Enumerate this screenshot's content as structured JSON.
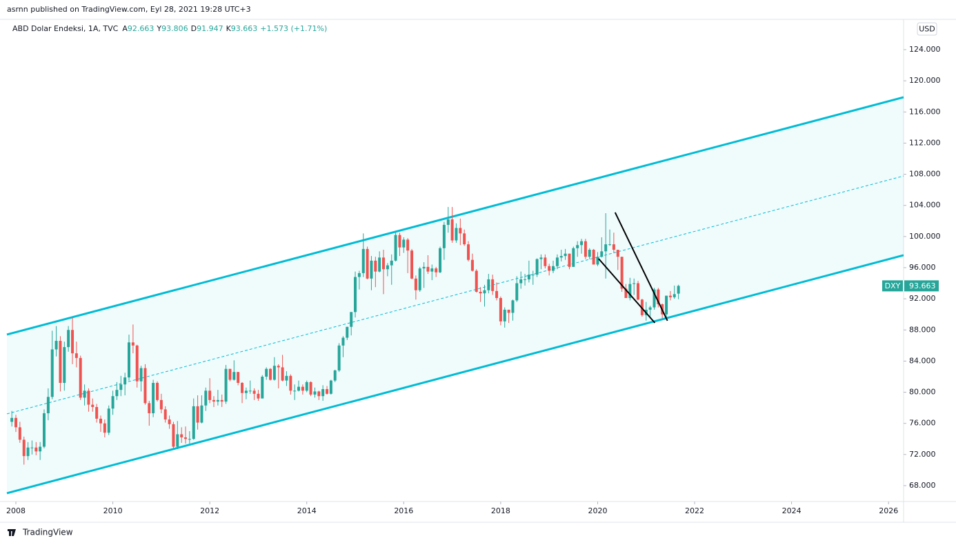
{
  "header": {
    "published": "asrnn published on TradingView.com, Eyl 28, 2021 19:28 UTC+3",
    "footer": "TradingView"
  },
  "chart_data": {
    "type": "candlestick",
    "title": "ABD Dolar Endeksi, 1A, TVC",
    "legend": {
      "open_label": "A",
      "high_label": "Y",
      "low_label": "D",
      "close_label": "K",
      "change": "+1.573 (+1.71%)"
    },
    "symbol": "DXY",
    "currency": "USD",
    "up_color": "#26a69a",
    "down_color": "#ef5350",
    "x": [
      2007.917,
      2008.0,
      2008.083,
      2008.167,
      2008.25,
      2008.333,
      2008.417,
      2008.5,
      2008.583,
      2008.667,
      2008.75,
      2008.833,
      2008.917,
      2009.0,
      2009.083,
      2009.167,
      2009.25,
      2009.333,
      2009.417,
      2009.5,
      2009.583,
      2009.667,
      2009.75,
      2009.833,
      2009.917,
      2010.0,
      2010.083,
      2010.167,
      2010.25,
      2010.333,
      2010.417,
      2010.5,
      2010.583,
      2010.667,
      2010.75,
      2010.833,
      2010.917,
      2011.0,
      2011.083,
      2011.167,
      2011.25,
      2011.333,
      2011.417,
      2011.5,
      2011.583,
      2011.667,
      2011.75,
      2011.833,
      2011.917,
      2012.0,
      2012.083,
      2012.167,
      2012.25,
      2012.333,
      2012.417,
      2012.5,
      2012.583,
      2012.667,
      2012.75,
      2012.833,
      2012.917,
      2013.0,
      2013.083,
      2013.167,
      2013.25,
      2013.333,
      2013.417,
      2013.5,
      2013.583,
      2013.667,
      2013.75,
      2013.833,
      2013.917,
      2014.0,
      2014.083,
      2014.167,
      2014.25,
      2014.333,
      2014.417,
      2014.5,
      2014.583,
      2014.667,
      2014.75,
      2014.833,
      2014.917,
      2015.0,
      2015.083,
      2015.167,
      2015.25,
      2015.333,
      2015.417,
      2015.5,
      2015.583,
      2015.667,
      2015.75,
      2015.833,
      2015.917,
      2016.0,
      2016.083,
      2016.167,
      2016.25,
      2016.333,
      2016.417,
      2016.5,
      2016.583,
      2016.667,
      2016.75,
      2016.833,
      2016.917,
      2017.0,
      2017.083,
      2017.167,
      2017.25,
      2017.333,
      2017.417,
      2017.5,
      2017.583,
      2017.667,
      2017.75,
      2017.833,
      2017.917,
      2018.0,
      2018.083,
      2018.167,
      2018.25,
      2018.333,
      2018.417,
      2018.5,
      2018.583,
      2018.667,
      2018.75,
      2018.833,
      2018.917,
      2019.0,
      2019.083,
      2019.167,
      2019.25,
      2019.333,
      2019.417,
      2019.5,
      2019.583,
      2019.667,
      2019.75,
      2019.833,
      2019.917,
      2020.0,
      2020.083,
      2020.167,
      2020.25,
      2020.333,
      2020.417,
      2020.5,
      2020.583,
      2020.667,
      2020.75,
      2020.833,
      2020.917,
      2021.0,
      2021.083,
      2021.167,
      2021.25,
      2021.333,
      2021.417,
      2021.5,
      2021.583,
      2021.667
    ],
    "open": [
      76.2,
      76.7,
      75.5,
      73.9,
      71.8,
      72.9,
      72.9,
      72.4,
      73.0,
      77.3,
      79.4,
      85.5,
      86.6,
      81.2,
      85.8,
      88.0,
      85.0,
      84.4,
      79.3,
      80.2,
      78.4,
      78.1,
      76.6,
      76.0,
      74.8,
      77.9,
      79.5,
      80.3,
      81.0,
      81.9,
      86.4,
      86.0,
      81.4,
      83.1,
      78.6,
      77.3,
      81.2,
      79.0,
      77.8,
      76.5,
      75.9,
      73.0,
      74.6,
      74.2,
      74.0,
      74.0,
      78.2,
      76.1,
      78.3,
      80.2,
      79.0,
      78.8,
      79.0,
      78.8,
      83.0,
      81.6,
      82.6,
      81.2,
      79.9,
      80.2,
      80.2,
      79.8,
      79.2,
      82.0,
      83.0,
      81.6,
      83.4,
      83.2,
      81.5,
      82.1,
      80.2,
      80.2,
      80.7,
      80.2,
      81.3,
      79.7,
      80.1,
      79.5,
      80.4,
      79.8,
      81.5,
      82.8,
      86.0,
      87.0,
      88.4,
      90.3,
      94.8,
      95.3,
      98.4,
      94.6,
      96.9,
      95.5,
      97.3,
      95.8,
      96.3,
      96.9,
      100.2,
      98.6,
      99.6,
      98.2,
      94.6,
      93.1,
      95.9,
      96.1,
      95.5,
      95.9,
      95.4,
      98.5,
      101.5,
      102.2,
      99.5,
      101.1,
      100.4,
      99.0,
      97.0,
      95.6,
      92.9,
      92.7,
      93.1,
      94.5,
      93.0,
      92.1,
      89.1,
      90.6,
      90.2,
      91.8,
      94.0,
      94.5,
      94.5,
      95.1,
      95.1,
      97.1,
      97.3,
      96.2,
      95.6,
      96.2,
      97.3,
      97.5,
      97.8,
      96.1,
      98.5,
      98.9,
      99.4,
      97.4,
      98.3,
      96.4,
      97.4,
      98.1,
      99.0,
      99.0,
      98.3,
      97.4,
      93.3,
      92.1,
      93.9,
      94.0,
      91.9,
      89.9,
      90.6,
      90.9,
      93.2,
      91.3,
      90.0,
      92.4,
      92.2,
      92.663
    ],
    "high": [
      77.6,
      77.1,
      76.2,
      74.3,
      73.6,
      73.8,
      73.6,
      73.6,
      77.8,
      80.5,
      87.9,
      88.5,
      87.2,
      86.5,
      88.5,
      89.6,
      86.5,
      84.7,
      81.0,
      80.5,
      79.2,
      78.5,
      77.0,
      76.5,
      78.3,
      80.2,
      81.3,
      82.1,
      82.5,
      87.4,
      88.7,
      86.1,
      83.4,
      83.6,
      78.9,
      81.6,
      81.4,
      79.8,
      78.2,
      77.0,
      76.2,
      76.3,
      75.5,
      75.6,
      75.0,
      79.2,
      79.6,
      79.6,
      80.6,
      81.8,
      79.5,
      80.3,
      79.7,
      83.5,
      83.0,
      84.1,
      82.6,
      81.3,
      80.6,
      81.5,
      80.5,
      80.3,
      82.2,
      83.2,
      83.1,
      84.5,
      83.6,
      84.8,
      82.7,
      82.3,
      81.0,
      81.5,
      81.0,
      81.5,
      81.4,
      80.6,
      80.2,
      80.9,
      80.8,
      81.6,
      82.9,
      86.3,
      87.2,
      88.4,
      90.3,
      95.5,
      95.6,
      100.4,
      98.7,
      97.5,
      97.4,
      98.1,
      98.3,
      96.6,
      97.7,
      100.5,
      100.5,
      99.9,
      99.8,
      98.4,
      95.0,
      96.1,
      96.7,
      97.6,
      96.4,
      96.1,
      98.7,
      101.9,
      103.8,
      103.8,
      101.7,
      102.3,
      100.9,
      99.4,
      97.8,
      95.8,
      93.5,
      93.8,
      95.2,
      95.1,
      94.1,
      92.3,
      90.9,
      90.6,
      91.9,
      94.9,
      95.5,
      95.2,
      96.9,
      95.6,
      97.2,
      97.7,
      97.7,
      96.5,
      96.9,
      97.7,
      98.3,
      98.4,
      97.8,
      98.7,
      99.4,
      99.7,
      99.7,
      98.5,
      98.4,
      98.0,
      99.9,
      103.0,
      100.9,
      100.5,
      98.3,
      97.4,
      93.9,
      94.7,
      94.6,
      94.3,
      92.0,
      91.6,
      91.1,
      93.4,
      93.4,
      91.4,
      92.4,
      93.0,
      93.7,
      93.806
    ],
    "low": [
      75.6,
      74.9,
      73.5,
      70.7,
      71.3,
      72.0,
      71.9,
      71.3,
      72.8,
      76.4,
      79.1,
      84.6,
      80.1,
      80.2,
      85.2,
      83.6,
      83.2,
      79.0,
      78.3,
      77.5,
      77.5,
      76.1,
      74.9,
      74.2,
      74.5,
      77.1,
      79.0,
      79.5,
      79.6,
      81.5,
      85.0,
      80.6,
      80.1,
      78.4,
      75.7,
      76.8,
      78.8,
      77.3,
      76.1,
      75.3,
      72.8,
      72.7,
      73.5,
      73.4,
      73.4,
      73.9,
      75.2,
      76.0,
      77.6,
      78.6,
      78.1,
      78.3,
      78.1,
      78.5,
      81.4,
      81.5,
      80.9,
      78.6,
      79.1,
      79.8,
      79.0,
      78.9,
      79.2,
      81.6,
      81.5,
      81.5,
      80.5,
      81.4,
      80.8,
      79.7,
      79.0,
      80.1,
      79.7,
      80.0,
      79.5,
      79.3,
      79.0,
      78.9,
      79.7,
      79.7,
      81.3,
      82.6,
      84.5,
      86.7,
      87.3,
      89.6,
      93.2,
      94.8,
      94.5,
      93.1,
      93.5,
      95.4,
      92.6,
      94.9,
      93.8,
      96.8,
      97.5,
      97.9,
      95.3,
      94.5,
      91.9,
      92.9,
      93.4,
      95.2,
      94.4,
      94.8,
      95.3,
      97.0,
      100.5,
      99.2,
      99.2,
      98.9,
      98.8,
      96.8,
      95.5,
      92.8,
      91.6,
      91.0,
      92.7,
      92.5,
      91.8,
      88.6,
      88.3,
      88.9,
      89.2,
      91.6,
      93.3,
      93.7,
      94.1,
      93.8,
      94.8,
      95.8,
      95.9,
      95.0,
      95.3,
      95.8,
      96.8,
      97.0,
      95.8,
      96.1,
      97.4,
      97.8,
      97.1,
      97.1,
      96.4,
      96.2,
      97.3,
      94.6,
      98.8,
      97.9,
      95.7,
      92.9,
      92.1,
      91.8,
      92.5,
      91.8,
      89.7,
      89.2,
      89.7,
      90.6,
      90.9,
      89.5,
      89.5,
      91.8,
      92.0,
      91.947
    ],
    "close": [
      76.7,
      75.5,
      73.9,
      71.8,
      72.9,
      72.9,
      72.4,
      73.0,
      77.3,
      79.4,
      85.5,
      86.6,
      81.2,
      85.8,
      88.0,
      85.0,
      84.4,
      79.3,
      80.2,
      78.4,
      78.1,
      76.6,
      76.0,
      74.8,
      77.9,
      79.5,
      80.3,
      81.0,
      81.9,
      86.4,
      86.0,
      81.4,
      83.1,
      78.6,
      77.3,
      81.2,
      79.0,
      77.8,
      76.5,
      75.9,
      73.0,
      74.6,
      74.2,
      74.0,
      74.0,
      78.2,
      76.1,
      78.3,
      80.2,
      79.0,
      78.8,
      79.0,
      78.8,
      83.0,
      81.6,
      82.6,
      81.2,
      79.9,
      80.2,
      80.2,
      79.8,
      79.2,
      82.0,
      83.0,
      81.6,
      83.4,
      83.2,
      81.5,
      82.1,
      80.2,
      80.2,
      80.7,
      80.2,
      81.3,
      79.7,
      80.1,
      79.5,
      80.4,
      79.8,
      81.5,
      82.8,
      86.0,
      87.0,
      88.4,
      90.3,
      94.8,
      95.3,
      98.4,
      94.6,
      96.9,
      95.5,
      97.3,
      95.8,
      96.3,
      96.9,
      100.2,
      98.6,
      99.6,
      98.2,
      94.6,
      93.1,
      95.9,
      96.1,
      95.5,
      95.9,
      95.4,
      98.5,
      101.5,
      102.2,
      99.5,
      101.1,
      100.4,
      99.0,
      97.0,
      95.6,
      92.9,
      92.7,
      93.1,
      94.5,
      93.0,
      92.1,
      89.1,
      90.6,
      90.2,
      91.8,
      94.0,
      94.5,
      94.5,
      95.1,
      95.1,
      97.1,
      97.3,
      96.2,
      95.6,
      96.2,
      97.3,
      97.5,
      97.8,
      96.1,
      98.5,
      98.9,
      99.4,
      97.4,
      98.3,
      96.4,
      97.4,
      98.1,
      99.0,
      99.0,
      98.3,
      97.4,
      93.3,
      92.1,
      93.9,
      94.0,
      91.9,
      89.9,
      90.6,
      90.9,
      93.2,
      91.3,
      90.0,
      92.4,
      92.2,
      92.6,
      93.663
    ],
    "xlim": [
      2007.815,
      2026.31
    ],
    "xticks": [
      2008,
      2010,
      2012,
      2014,
      2016,
      2018,
      2020,
      2022,
      2024,
      2026
    ],
    "ylim": [
      65.96,
      127.9
    ],
    "yticks": [
      {
        "value": 68,
        "label": "68.000"
      },
      {
        "value": 72,
        "label": "72.000"
      },
      {
        "value": 76,
        "label": "76.000"
      },
      {
        "value": 80,
        "label": "80.000"
      },
      {
        "value": 84,
        "label": "84.000"
      },
      {
        "value": 88,
        "label": "88.000"
      },
      {
        "value": 92,
        "label": "92.000"
      },
      {
        "value": 96,
        "label": "96.000"
      },
      {
        "value": 100,
        "label": "100.000"
      },
      {
        "value": 104,
        "label": "104.000"
      },
      {
        "value": 108,
        "label": "108.000"
      },
      {
        "value": 112,
        "label": "112.000"
      },
      {
        "value": 116,
        "label": "116.000"
      },
      {
        "value": 120,
        "label": "120.000"
      },
      {
        "value": 124,
        "label": "124.000"
      }
    ],
    "channel": {
      "color": "#00bcd4",
      "x": [
        2007.815,
        2026.31
      ],
      "upper": [
        87.41,
        117.89
      ],
      "middle": [
        77.22,
        107.78
      ],
      "lower": [
        67.03,
        97.6
      ]
    },
    "lines": [
      {
        "color": "#000000",
        "x": [
          2020.36,
          2021.44
        ],
        "y": [
          103.09,
          89.18
        ]
      },
      {
        "color": "#000000",
        "x": [
          2020.02,
          2021.18
        ],
        "y": [
          97.15,
          88.91
        ]
      }
    ]
  }
}
